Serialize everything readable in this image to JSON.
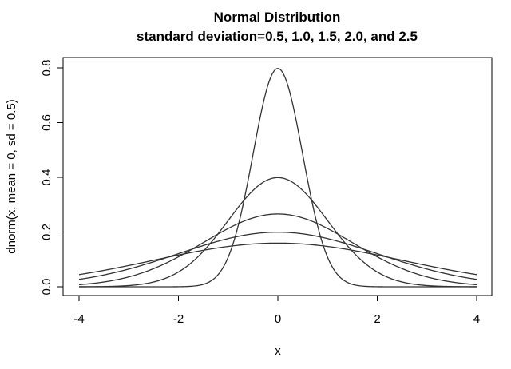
{
  "chart_data": {
    "type": "line",
    "title": "Normal Distribution",
    "subtitle": "standard deviation=0.5, 1.0, 1.5, 2.0, and 2.5",
    "xlabel": "x",
    "ylabel": "dnorm(x, mean = 0, sd = 0.5)",
    "xlim": [
      -4,
      4
    ],
    "ylim": [
      0,
      0.8
    ],
    "x_ticks": [
      "-4",
      "-2",
      "0",
      "2",
      "4"
    ],
    "y_ticks": [
      "0.0",
      "0.2",
      "0.4",
      "0.6",
      "0.8"
    ],
    "grid": false,
    "legend": "none",
    "line_color": "#333333",
    "mean": 0,
    "series": [
      {
        "sd": 0.5
      },
      {
        "sd": 1.0
      },
      {
        "sd": 1.5
      },
      {
        "sd": 2.0
      },
      {
        "sd": 2.5
      }
    ]
  }
}
